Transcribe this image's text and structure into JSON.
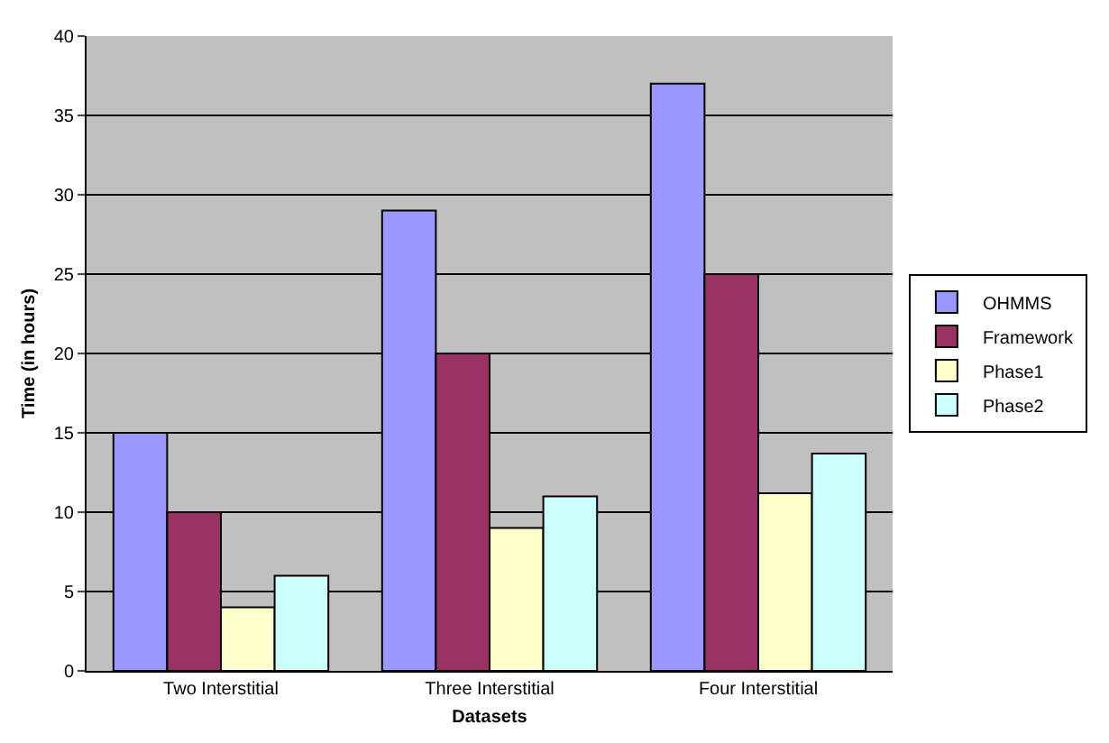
{
  "chart_data": {
    "type": "bar",
    "xlabel": "Datasets",
    "ylabel": "Time (in hours)",
    "categories": [
      "Two Interstitial",
      "Three Interstitial",
      "Four Interstitial"
    ],
    "series": [
      {
        "name": "OHMMS",
        "color": "#9999ff",
        "values": [
          15,
          29,
          37
        ]
      },
      {
        "name": "Framework",
        "color": "#993366",
        "values": [
          10,
          20,
          25
        ]
      },
      {
        "name": "Phase1",
        "color": "#ffffcc",
        "values": [
          4,
          9,
          11.2
        ]
      },
      {
        "name": "Phase2",
        "color": "#ccffff",
        "values": [
          6,
          11,
          13.7
        ]
      }
    ],
    "ylim": [
      0,
      40
    ],
    "yticks": [
      0,
      5,
      10,
      15,
      20,
      25,
      30,
      35,
      40
    ],
    "grid": "y",
    "legend": "right"
  }
}
